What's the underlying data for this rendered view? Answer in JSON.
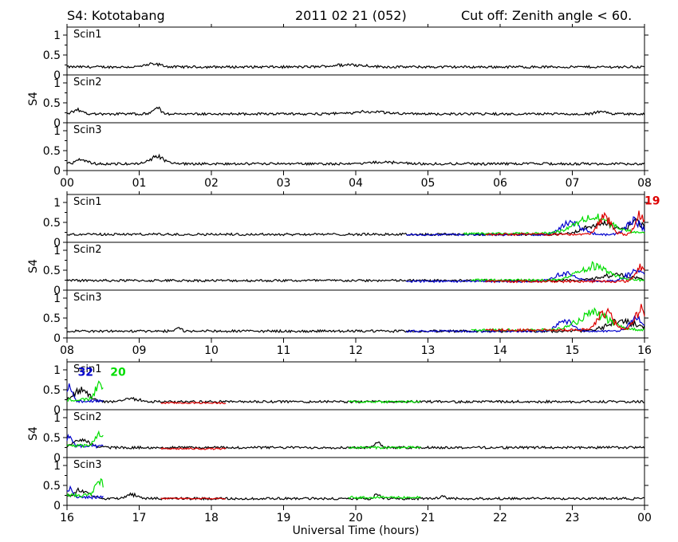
{
  "header": {
    "station": "S4: Kototabang",
    "date": "2011 02 21 (052)",
    "cutoff": "Cut off: Zenith angle < 60."
  },
  "chart_data": {
    "type": "line",
    "xlabel": "Universal Time (hours)",
    "ylabel": "S4",
    "ylim": [
      0,
      1.2
    ],
    "yticks": [
      "0",
      "0.5",
      "1"
    ],
    "groups": [
      {
        "xrange": [
          0,
          8
        ],
        "xticks": [
          "00",
          "01",
          "02",
          "03",
          "04",
          "05",
          "06",
          "07",
          "08"
        ],
        "panels": [
          {
            "label": "Scin1",
            "series": [
              {
                "color": "#000000",
                "x": [
                  0,
                  8
                ],
                "baseline": 0.2,
                "noise": 0.03,
                "bumps": [
                  [
                    1.2,
                    0.07,
                    0.15
                  ],
                  [
                    3.9,
                    0.06,
                    0.3
                  ]
                ]
              }
            ]
          },
          {
            "label": "Scin2",
            "series": [
              {
                "color": "#000000",
                "x": [
                  0,
                  8
                ],
                "baseline": 0.22,
                "noise": 0.03,
                "bumps": [
                  [
                    0.15,
                    0.1,
                    0.1
                  ],
                  [
                    1.25,
                    0.15,
                    0.08
                  ],
                  [
                    4.2,
                    0.05,
                    0.4
                  ],
                  [
                    7.4,
                    0.06,
                    0.1
                  ]
                ]
              }
            ]
          },
          {
            "label": "Scin3",
            "series": [
              {
                "color": "#000000",
                "x": [
                  0,
                  8
                ],
                "baseline": 0.17,
                "noise": 0.03,
                "bumps": [
                  [
                    0.2,
                    0.1,
                    0.1
                  ],
                  [
                    1.25,
                    0.17,
                    0.15
                  ],
                  [
                    4.4,
                    0.04,
                    0.3
                  ]
                ]
              }
            ]
          }
        ],
        "annotations": []
      },
      {
        "xrange": [
          8,
          16
        ],
        "xticks": [
          "08",
          "09",
          "10",
          "11",
          "12",
          "13",
          "14",
          "15",
          "16"
        ],
        "panels": [
          {
            "label": "Scin1",
            "series": [
              {
                "color": "#000000",
                "x": [
                  8,
                  16
                ],
                "baseline": 0.2,
                "noise": 0.03,
                "bumps": [
                  [
                    15.4,
                    0.25,
                    0.3
                  ],
                  [
                    15.9,
                    0.3,
                    0.15
                  ]
                ]
              },
              {
                "color": "#0000cc",
                "x": [
                  12.7,
                  16
                ],
                "baseline": 0.19,
                "noise": 0.025,
                "bumps": [
                  [
                    15.0,
                    0.3,
                    0.2
                  ],
                  [
                    15.85,
                    0.35,
                    0.15
                  ]
                ]
              },
              {
                "color": "#00dd00",
                "x": [
                  13.5,
                  16
                ],
                "baseline": 0.22,
                "noise": 0.03,
                "bumps": [
                  [
                    15.3,
                    0.4,
                    0.35
                  ]
                ]
              },
              {
                "color": "#dd0000",
                "x": [
                  13.8,
                  16
                ],
                "baseline": 0.2,
                "noise": 0.03,
                "bumps": [
                  [
                    15.45,
                    0.45,
                    0.12
                  ],
                  [
                    15.95,
                    0.5,
                    0.1
                  ]
                ]
              }
            ]
          },
          {
            "label": "Scin2",
            "series": [
              {
                "color": "#000000",
                "x": [
                  8,
                  16
                ],
                "baseline": 0.24,
                "noise": 0.03,
                "bumps": [
                  [
                    15.6,
                    0.15,
                    0.3
                  ]
                ]
              },
              {
                "color": "#0000cc",
                "x": [
                  12.7,
                  16
                ],
                "baseline": 0.22,
                "noise": 0.025,
                "bumps": [
                  [
                    14.9,
                    0.2,
                    0.2
                  ],
                  [
                    15.9,
                    0.25,
                    0.2
                  ]
                ]
              },
              {
                "color": "#00dd00",
                "x": [
                  13.6,
                  16
                ],
                "baseline": 0.25,
                "noise": 0.03,
                "bumps": [
                  [
                    15.3,
                    0.35,
                    0.3
                  ]
                ]
              },
              {
                "color": "#dd0000",
                "x": [
                  13.8,
                  16
                ],
                "baseline": 0.22,
                "noise": 0.03,
                "bumps": [
                  [
                    15.95,
                    0.35,
                    0.1
                  ]
                ]
              }
            ]
          },
          {
            "label": "Scin3",
            "series": [
              {
                "color": "#000000",
                "x": [
                  8,
                  16
                ],
                "baseline": 0.17,
                "noise": 0.03,
                "bumps": [
                  [
                    9.55,
                    0.08,
                    0.05
                  ],
                  [
                    15.7,
                    0.25,
                    0.3
                  ]
                ]
              },
              {
                "color": "#0000cc",
                "x": [
                  12.7,
                  16
                ],
                "baseline": 0.17,
                "noise": 0.025,
                "bumps": [
                  [
                    14.9,
                    0.25,
                    0.15
                  ],
                  [
                    15.9,
                    0.3,
                    0.15
                  ]
                ]
              },
              {
                "color": "#00dd00",
                "x": [
                  13.6,
                  16
                ],
                "baseline": 0.2,
                "noise": 0.03,
                "bumps": [
                  [
                    15.3,
                    0.4,
                    0.3
                  ]
                ]
              },
              {
                "color": "#dd0000",
                "x": [
                  13.8,
                  16
                ],
                "baseline": 0.2,
                "noise": 0.03,
                "bumps": [
                  [
                    15.45,
                    0.45,
                    0.15
                  ],
                  [
                    15.95,
                    0.5,
                    0.12
                  ]
                ]
              }
            ]
          }
        ],
        "annotations": [
          {
            "text": "19",
            "color": "#dd0000",
            "panel": 0,
            "x": 16.0,
            "y": 0.95
          }
        ]
      },
      {
        "xrange": [
          16,
          24
        ],
        "xticks": [
          "16",
          "17",
          "18",
          "19",
          "20",
          "21",
          "22",
          "23",
          "00"
        ],
        "panels": [
          {
            "label": "Scin1",
            "series": [
              {
                "color": "#000000",
                "x": [
                  16,
                  24
                ],
                "baseline": 0.2,
                "noise": 0.03,
                "bumps": [
                  [
                    16.2,
                    0.3,
                    0.15
                  ],
                  [
                    16.9,
                    0.08,
                    0.15
                  ]
                ]
              },
              {
                "color": "#0000cc",
                "x": [
                  16,
                  16.5
                ],
                "baseline": 0.22,
                "noise": 0.04,
                "bumps": [
                  [
                    16.03,
                    0.35,
                    0.06
                  ]
                ]
              },
              {
                "color": "#00dd00",
                "x": [
                  16,
                  16.5
                ],
                "baseline": 0.25,
                "noise": 0.04,
                "bumps": [
                  [
                    16.45,
                    0.4,
                    0.08
                  ]
                ]
              },
              {
                "color": "#00dd00",
                "x": [
                  19.9,
                  20.9
                ],
                "baseline": 0.2,
                "noise": 0.03,
                "bumps": []
              },
              {
                "color": "#dd0000",
                "x": [
                  17.3,
                  18.2
                ],
                "baseline": 0.17,
                "noise": 0.02,
                "bumps": []
              }
            ]
          },
          {
            "label": "Scin2",
            "series": [
              {
                "color": "#000000",
                "x": [
                  16,
                  24
                ],
                "baseline": 0.25,
                "noise": 0.03,
                "bumps": [
                  [
                    16.2,
                    0.2,
                    0.15
                  ],
                  [
                    20.3,
                    0.15,
                    0.05
                  ]
                ]
              },
              {
                "color": "#0000cc",
                "x": [
                  16,
                  16.5
                ],
                "baseline": 0.28,
                "noise": 0.04,
                "bumps": [
                  [
                    16.03,
                    0.25,
                    0.06
                  ]
                ]
              },
              {
                "color": "#00dd00",
                "x": [
                  16,
                  16.5
                ],
                "baseline": 0.3,
                "noise": 0.04,
                "bumps": [
                  [
                    16.45,
                    0.3,
                    0.08
                  ]
                ]
              },
              {
                "color": "#00dd00",
                "x": [
                  19.9,
                  20.9
                ],
                "baseline": 0.25,
                "noise": 0.03,
                "bumps": []
              },
              {
                "color": "#dd0000",
                "x": [
                  17.3,
                  18.2
                ],
                "baseline": 0.22,
                "noise": 0.02,
                "bumps": []
              }
            ]
          },
          {
            "label": "Scin3",
            "series": [
              {
                "color": "#000000",
                "x": [
                  16,
                  24
                ],
                "baseline": 0.17,
                "noise": 0.03,
                "bumps": [
                  [
                    16.2,
                    0.2,
                    0.15
                  ],
                  [
                    16.9,
                    0.1,
                    0.1
                  ],
                  [
                    20.3,
                    0.12,
                    0.05
                  ],
                  [
                    21.2,
                    0.06,
                    0.05
                  ]
                ]
              },
              {
                "color": "#0000cc",
                "x": [
                  16,
                  16.5
                ],
                "baseline": 0.2,
                "noise": 0.04,
                "bumps": [
                  [
                    16.03,
                    0.25,
                    0.06
                  ]
                ]
              },
              {
                "color": "#00dd00",
                "x": [
                  16,
                  16.5
                ],
                "baseline": 0.25,
                "noise": 0.04,
                "bumps": [
                  [
                    16.45,
                    0.35,
                    0.08
                  ]
                ]
              },
              {
                "color": "#00dd00",
                "x": [
                  19.9,
                  20.9
                ],
                "baseline": 0.2,
                "noise": 0.03,
                "bumps": []
              },
              {
                "color": "#dd0000",
                "x": [
                  17.3,
                  18.2
                ],
                "baseline": 0.17,
                "noise": 0.02,
                "bumps": []
              }
            ]
          }
        ],
        "annotations": [
          {
            "text": "32",
            "color": "#0000cc",
            "panel": 0,
            "x": 16.15,
            "y": 0.85
          },
          {
            "text": "20",
            "color": "#00dd00",
            "panel": 0,
            "x": 16.6,
            "y": 0.85
          }
        ]
      }
    ]
  }
}
